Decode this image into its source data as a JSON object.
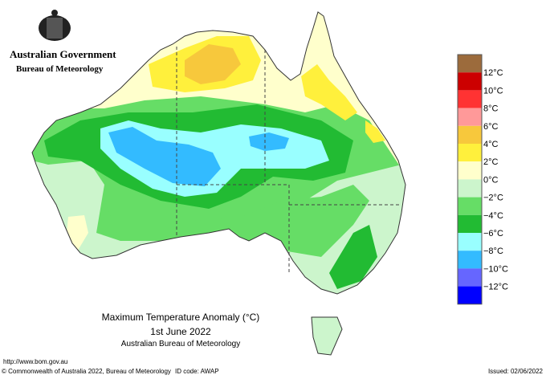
{
  "header": {
    "government": "Australian Government",
    "agency": "Bureau of Meteorology"
  },
  "map": {
    "title": "Maximum Temperature Anomaly (°C)",
    "date": "1st June 2022",
    "source": "Australian Bureau of Meteorology"
  },
  "legend": {
    "labels": [
      "12°C",
      "10°C",
      "8°C",
      "6°C",
      "4°C",
      "2°C",
      "0°C",
      "−2°C",
      "−4°C",
      "−6°C",
      "−8°C",
      "−10°C",
      "−12°C"
    ],
    "colors": [
      "#9c6b3c",
      "#cc0000",
      "#ff3333",
      "#ff9999",
      "#f7c83c",
      "#fff03c",
      "#ffffcc",
      "#ccf5cc",
      "#66dd66",
      "#22bb33",
      "#99ffff",
      "#33bbff",
      "#6666ff",
      "#0000ff"
    ]
  },
  "footer": {
    "url": "http://www.bom.gov.au",
    "copyright": "© Commonwealth of Australia 2022, Bureau of Meteorology",
    "id_code": "ID code: AWAP",
    "issued": "Issued: 02/06/2022"
  }
}
